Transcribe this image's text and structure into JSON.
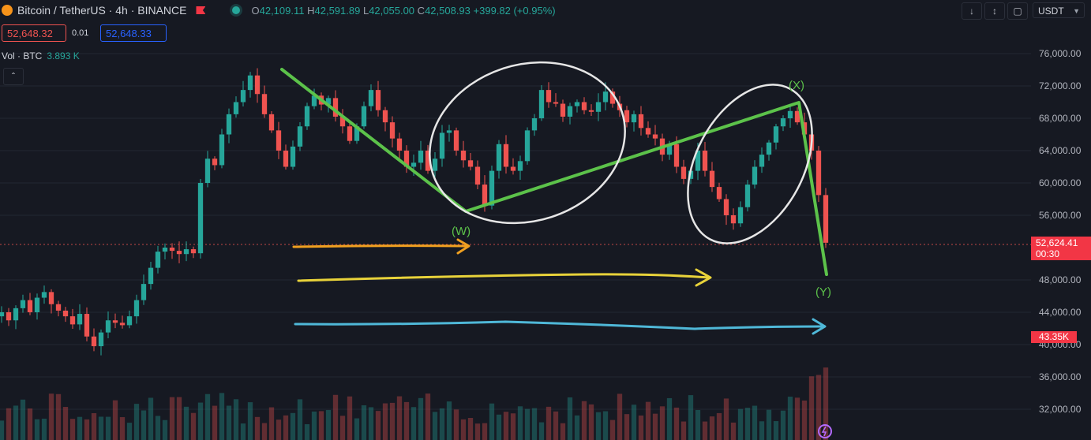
{
  "header": {
    "symbol": "Bitcoin / TetherUS · 4h · BINANCE",
    "open": "42,109.11",
    "high": "42,591.89",
    "low": "42,055.00",
    "close": "42,508.93",
    "change": "+399.82 (+0.95%)"
  },
  "trade": {
    "sell_price": "52,648.32",
    "spread": "0.01",
    "buy_price": "52,648.33"
  },
  "volume": {
    "label": "Vol · BTC",
    "value": "3.893 K"
  },
  "currency": "USDT",
  "price_axis": [
    "76,000.00",
    "72,000.00",
    "68,000.00",
    "64,000.00",
    "60,000.00",
    "56,000.00",
    "48,000.00",
    "44,000.00",
    "40,000.00",
    "36,000.00",
    "32,000.00"
  ],
  "last_price": {
    "price": "52,624.41",
    "countdown": "00:30"
  },
  "volume_tag": "43.35K",
  "annotations": {
    "w": "(W)",
    "x": "(X)",
    "y": "(Y)"
  },
  "colors": {
    "background": "#161922",
    "up": "#26a69a",
    "down": "#ef5350",
    "trend_line": "#5cc24a",
    "circle": "#e6e6e6",
    "arrow_orange": "#f0a020",
    "arrow_yellow": "#e8d23a",
    "arrow_cyan": "#4fb8d8"
  },
  "icons": {
    "collapse": "chevron-up-icon",
    "download": "download-icon",
    "fullscreen": "fullscreen-icon",
    "screenshot": "camera-icon"
  },
  "chart_data": {
    "type": "candlestick",
    "y_axis_unit": "USDT",
    "ylim": [
      30000,
      78000
    ],
    "series_close": [
      44000,
      43000,
      44500,
      45500,
      44000,
      45800,
      46500,
      45000,
      44200,
      43500,
      42500,
      43800,
      41000,
      39800,
      41500,
      43000,
      42700,
      42400,
      43500,
      45500,
      47500,
      49500,
      51500,
      52000,
      51600,
      51200,
      51800,
      51300,
      60000,
      63000,
      62200,
      66000,
      68500,
      70000,
      71500,
      73300,
      71000,
      68500,
      66500,
      64000,
      62000,
      64500,
      67000,
      69500,
      70800,
      69700,
      70500,
      68200,
      67000,
      65200,
      67000,
      69500,
      71500,
      69000,
      67500,
      65500,
      64000,
      62000,
      62500,
      64000,
      61500,
      63000,
      66200,
      66500,
      64000,
      62800,
      62000,
      59800,
      57200,
      61500,
      64800,
      62000,
      61500,
      62700,
      66500,
      68000,
      71500,
      70000,
      69800,
      68200,
      69500,
      70000,
      69000,
      68800,
      70000,
      71300,
      69800,
      69000,
      67500,
      68500,
      66800,
      66000,
      65500,
      63500,
      64800,
      62000,
      60500,
      61500,
      64000,
      61500,
      59500,
      58000,
      56000,
      55000,
      57000,
      59800,
      62000,
      63500,
      65000,
      67000,
      68000,
      68900,
      67500,
      66000,
      64000,
      58500,
      52600
    ]
  }
}
